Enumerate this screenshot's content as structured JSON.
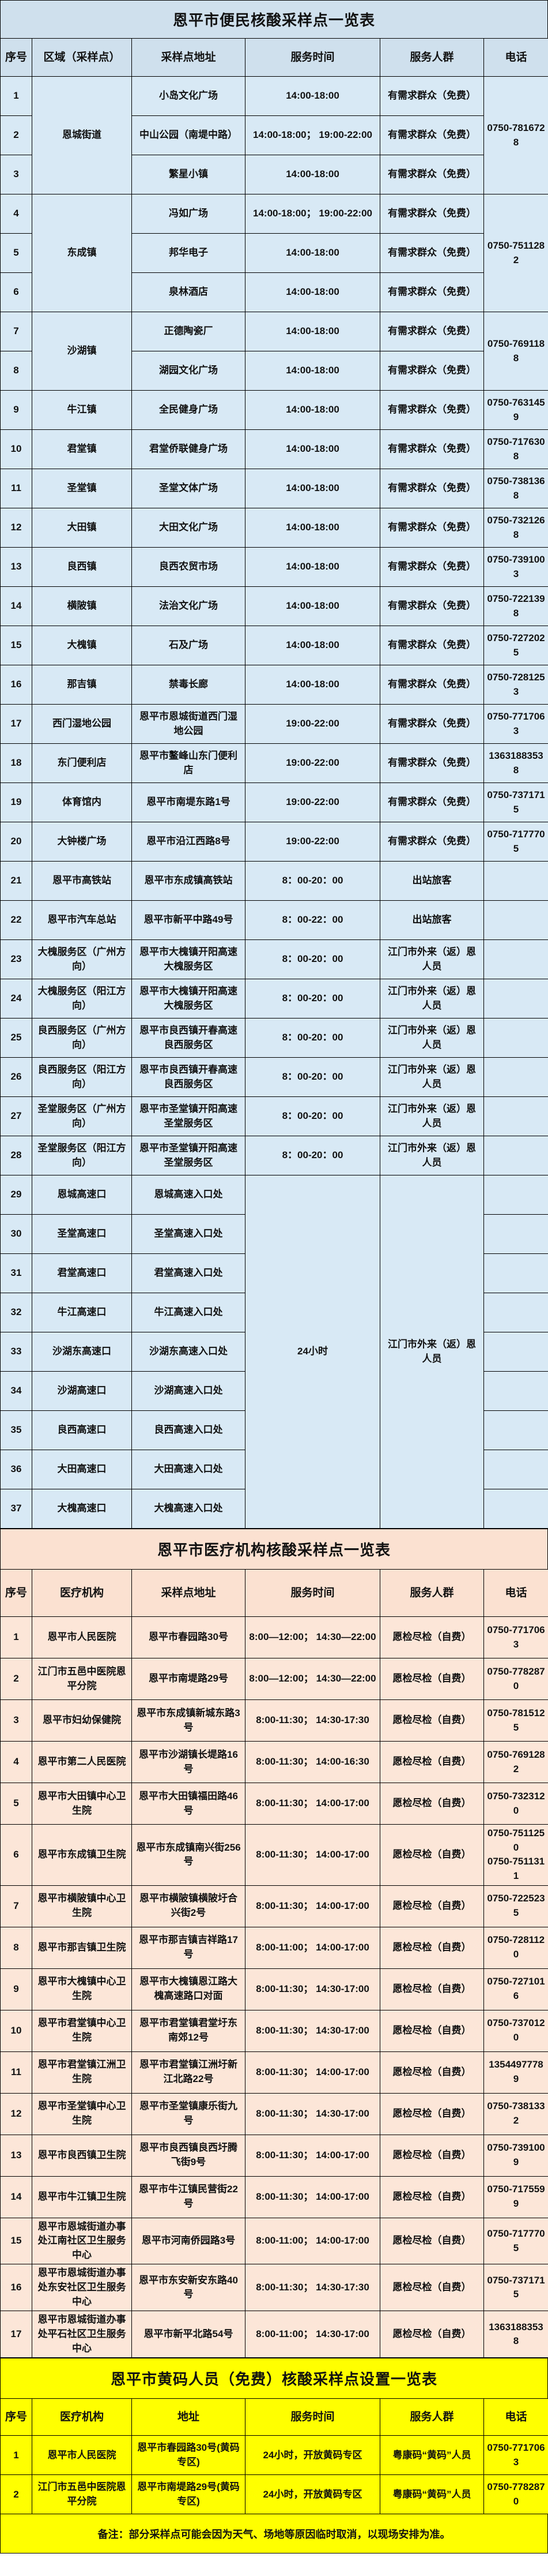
{
  "note": "备注：部分采样点可能会因为天气、场地等原因临时取消，以现场安排为准。",
  "tables": [
    {
      "title": "恩平市便民核酸采样点一览表",
      "headers": [
        "序号",
        "区域（采样点）",
        "采样点地址",
        "服务时间",
        "服务人群",
        "电话"
      ],
      "rows": [
        [
          {
            "text": "1"
          },
          {
            "text": "恩城街道",
            "rowspan": 3
          },
          {
            "text": "小岛文化广场"
          },
          {
            "text": "14:00-18:00"
          },
          {
            "text": "有需求群众（免费）"
          },
          {
            "text": "0750-7816728",
            "rowspan": 3
          }
        ],
        [
          {
            "text": "2"
          },
          {
            "text": "中山公园（南堤中路）"
          },
          {
            "text": "14:00-18:00； 19:00-22:00"
          },
          {
            "text": "有需求群众（免费）"
          }
        ],
        [
          {
            "text": "3"
          },
          {
            "text": "繁星小镇"
          },
          {
            "text": "14:00-18:00"
          },
          {
            "text": "有需求群众（免费）"
          }
        ],
        [
          {
            "text": "4"
          },
          {
            "text": "东成镇",
            "rowspan": 3
          },
          {
            "text": "冯如广场"
          },
          {
            "text": "14:00-18:00； 19:00-22:00"
          },
          {
            "text": "有需求群众（免费）"
          },
          {
            "text": "0750-7511282",
            "rowspan": 3
          }
        ],
        [
          {
            "text": "5"
          },
          {
            "text": "邦华电子"
          },
          {
            "text": "14:00-18:00"
          },
          {
            "text": "有需求群众（免费）"
          }
        ],
        [
          {
            "text": "6"
          },
          {
            "text": "泉林酒店"
          },
          {
            "text": "14:00-18:00"
          },
          {
            "text": "有需求群众（免费）"
          }
        ],
        [
          {
            "text": "7"
          },
          {
            "text": "沙湖镇",
            "rowspan": 2
          },
          {
            "text": "正德陶瓷厂"
          },
          {
            "text": "14:00-18:00"
          },
          {
            "text": "有需求群众（免费）"
          },
          {
            "text": "0750-7691188",
            "rowspan": 2
          }
        ],
        [
          {
            "text": "8"
          },
          {
            "text": "湖园文化广场"
          },
          {
            "text": "14:00-18:00"
          },
          {
            "text": "有需求群众（免费）"
          }
        ],
        [
          {
            "text": "9"
          },
          {
            "text": "牛江镇"
          },
          {
            "text": "全民健身广场"
          },
          {
            "text": "14:00-18:00"
          },
          {
            "text": "有需求群众（免费）"
          },
          {
            "text": "0750-7631459"
          }
        ],
        [
          {
            "text": "10"
          },
          {
            "text": "君堂镇"
          },
          {
            "text": "君堂侨联健身广场"
          },
          {
            "text": "14:00-18:00"
          },
          {
            "text": "有需求群众（免费）"
          },
          {
            "text": "0750-7176308"
          }
        ],
        [
          {
            "text": "11"
          },
          {
            "text": "圣堂镇"
          },
          {
            "text": "圣堂文体广场"
          },
          {
            "text": "14:00-18:00"
          },
          {
            "text": "有需求群众（免费）"
          },
          {
            "text": "0750-7381368"
          }
        ],
        [
          {
            "text": "12"
          },
          {
            "text": "大田镇"
          },
          {
            "text": "大田文化广场"
          },
          {
            "text": "14:00-18:00"
          },
          {
            "text": "有需求群众（免费）"
          },
          {
            "text": "0750-7321268"
          }
        ],
        [
          {
            "text": "13"
          },
          {
            "text": "良西镇"
          },
          {
            "text": "良西农贸市场"
          },
          {
            "text": "14:00-18:00"
          },
          {
            "text": "有需求群众（免费）"
          },
          {
            "text": "0750-7391003"
          }
        ],
        [
          {
            "text": "14"
          },
          {
            "text": "横陂镇"
          },
          {
            "text": "法治文化广场"
          },
          {
            "text": "14:00-18:00"
          },
          {
            "text": "有需求群众（免费）"
          },
          {
            "text": "0750-7221398"
          }
        ],
        [
          {
            "text": "15"
          },
          {
            "text": "大槐镇"
          },
          {
            "text": "石及广场"
          },
          {
            "text": "14:00-18:00"
          },
          {
            "text": "有需求群众（免费）"
          },
          {
            "text": "0750-7272025"
          }
        ],
        [
          {
            "text": "16"
          },
          {
            "text": "那吉镇"
          },
          {
            "text": "禁毒长廊"
          },
          {
            "text": "14:00-18:00"
          },
          {
            "text": "有需求群众（免费）"
          },
          {
            "text": "0750-7281253"
          }
        ],
        [
          {
            "text": "17"
          },
          {
            "text": "西门湿地公园"
          },
          {
            "text": "恩平市恩城街道西门湿地公园"
          },
          {
            "text": "19:00-22:00"
          },
          {
            "text": "有需求群众（免费）"
          },
          {
            "text": "0750-7717063"
          }
        ],
        [
          {
            "text": "18"
          },
          {
            "text": "东门便利店"
          },
          {
            "text": "恩平市鳌峰山东门便利店"
          },
          {
            "text": "19:00-22:00"
          },
          {
            "text": "有需求群众（免费）"
          },
          {
            "text": "13631883538"
          }
        ],
        [
          {
            "text": "19"
          },
          {
            "text": "体育馆内"
          },
          {
            "text": "恩平市南堤东路1号"
          },
          {
            "text": "19:00-22:00"
          },
          {
            "text": "有需求群众（免费）"
          },
          {
            "text": "0750-7371715"
          }
        ],
        [
          {
            "text": "20"
          },
          {
            "text": "大钟楼广场"
          },
          {
            "text": "恩平市沿江西路8号"
          },
          {
            "text": "19:00-22:00"
          },
          {
            "text": "有需求群众（免费）"
          },
          {
            "text": "0750-7177705"
          }
        ],
        [
          {
            "text": "21"
          },
          {
            "text": "恩平市高铁站"
          },
          {
            "text": "恩平市东成镇高铁站"
          },
          {
            "text": "8：00-20：00"
          },
          {
            "text": "出站旅客"
          },
          {
            "text": ""
          }
        ],
        [
          {
            "text": "22"
          },
          {
            "text": "恩平市汽车总站"
          },
          {
            "text": "恩平市新平中路49号"
          },
          {
            "text": "8：00-22：00"
          },
          {
            "text": "出站旅客"
          },
          {
            "text": ""
          }
        ],
        [
          {
            "text": "23"
          },
          {
            "text": "大槐服务区（广州方向）"
          },
          {
            "text": "恩平市大槐镇开阳高速大槐服务区"
          },
          {
            "text": "8：00-20：00"
          },
          {
            "text": "江门市外来（返）恩人员"
          },
          {
            "text": ""
          }
        ],
        [
          {
            "text": "24"
          },
          {
            "text": "大槐服务区（阳江方向）"
          },
          {
            "text": "恩平市大槐镇开阳高速大槐服务区"
          },
          {
            "text": "8：00-20：00"
          },
          {
            "text": "江门市外来（返）恩人员"
          },
          {
            "text": ""
          }
        ],
        [
          {
            "text": "25"
          },
          {
            "text": "良西服务区（广州方向）"
          },
          {
            "text": "恩平市良西镇开春高速良西服务区"
          },
          {
            "text": "8：00-20：00"
          },
          {
            "text": "江门市外来（返）恩人员"
          },
          {
            "text": ""
          }
        ],
        [
          {
            "text": "26"
          },
          {
            "text": "良西服务区（阳江方向）"
          },
          {
            "text": "恩平市良西镇开春高速良西服务区"
          },
          {
            "text": "8：00-20：00"
          },
          {
            "text": "江门市外来（返）恩人员"
          },
          {
            "text": ""
          }
        ],
        [
          {
            "text": "27"
          },
          {
            "text": "圣堂服务区（广州方向）"
          },
          {
            "text": "恩平市圣堂镇开阳高速圣堂服务区"
          },
          {
            "text": "8：00-20：00"
          },
          {
            "text": "江门市外来（返）恩人员"
          },
          {
            "text": ""
          }
        ],
        [
          {
            "text": "28"
          },
          {
            "text": "圣堂服务区（阳江方向）"
          },
          {
            "text": "恩平市圣堂镇开阳高速圣堂服务区"
          },
          {
            "text": "8：00-20：00"
          },
          {
            "text": "江门市外来（返）恩人员"
          },
          {
            "text": ""
          }
        ],
        [
          {
            "text": "29"
          },
          {
            "text": "恩城高速口"
          },
          {
            "text": "恩城高速入口处"
          },
          {
            "text": "24小时",
            "rowspan": 9
          },
          {
            "text": "江门市外来（返）恩人员",
            "rowspan": 9
          },
          {
            "text": ""
          }
        ],
        [
          {
            "text": "30"
          },
          {
            "text": "圣堂高速口"
          },
          {
            "text": "圣堂高速入口处"
          },
          {
            "text": ""
          }
        ],
        [
          {
            "text": "31"
          },
          {
            "text": "君堂高速口"
          },
          {
            "text": "君堂高速入口处"
          },
          {
            "text": ""
          }
        ],
        [
          {
            "text": "32"
          },
          {
            "text": "牛江高速口"
          },
          {
            "text": "牛江高速入口处"
          },
          {
            "text": ""
          }
        ],
        [
          {
            "text": "33"
          },
          {
            "text": "沙湖东高速口"
          },
          {
            "text": "沙湖东高速入口处"
          },
          {
            "text": ""
          }
        ],
        [
          {
            "text": "34"
          },
          {
            "text": "沙湖高速口"
          },
          {
            "text": "沙湖高速入口处"
          },
          {
            "text": ""
          }
        ],
        [
          {
            "text": "35"
          },
          {
            "text": "良西高速口"
          },
          {
            "text": "良西高速入口处"
          },
          {
            "text": ""
          }
        ],
        [
          {
            "text": "36"
          },
          {
            "text": "大田高速口"
          },
          {
            "text": "大田高速入口处"
          },
          {
            "text": ""
          }
        ],
        [
          {
            "text": "37"
          },
          {
            "text": "大槐高速口"
          },
          {
            "text": "大槐高速入口处"
          },
          {
            "text": ""
          }
        ]
      ]
    },
    {
      "title": "恩平市医疗机构核酸采样点一览表",
      "headers": [
        "序号",
        "医疗机构",
        "采样点地址",
        "服务时间",
        "服务人群",
        "电话"
      ],
      "rows": [
        [
          {
            "text": "1"
          },
          {
            "text": "恩平市人民医院"
          },
          {
            "text": "恩平市春园路30号"
          },
          {
            "text": "8:00—12:00； 14:30—22:00"
          },
          {
            "text": "愿检尽检（自费）"
          },
          {
            "text": "0750-7717063"
          }
        ],
        [
          {
            "text": "2"
          },
          {
            "text": "江门市五邑中医院恩平分院"
          },
          {
            "text": "恩平市南堤路29号"
          },
          {
            "text": "8:00—12:00； 14:30—22:00"
          },
          {
            "text": "愿检尽检（自费）"
          },
          {
            "text": "0750-7782870"
          }
        ],
        [
          {
            "text": "3"
          },
          {
            "text": "恩平市妇幼保健院"
          },
          {
            "text": "恩平市东成镇新城东路3号"
          },
          {
            "text": "8:00-11:30； 14:30-17:30"
          },
          {
            "text": "愿检尽检（自费）"
          },
          {
            "text": "0750-7815125"
          }
        ],
        [
          {
            "text": "4"
          },
          {
            "text": "恩平市第二人民医院"
          },
          {
            "text": "恩平市沙湖镇长堤路16号"
          },
          {
            "text": "8:00-11:30； 14:00-16:30"
          },
          {
            "text": "愿检尽检（自费）"
          },
          {
            "text": "0750-7691282"
          }
        ],
        [
          {
            "text": "5"
          },
          {
            "text": "恩平市大田镇中心卫生院"
          },
          {
            "text": "恩平市大田镇福田路46号"
          },
          {
            "text": "8:00-11:30； 14:00-17:00"
          },
          {
            "text": "愿检尽检（自费）"
          },
          {
            "text": "0750-7323120"
          }
        ],
        [
          {
            "text": "6"
          },
          {
            "text": "恩平市东成镇卫生院"
          },
          {
            "text": "恩平市东成镇南兴街256号"
          },
          {
            "text": "8:00-11:30； 14:00-17:00"
          },
          {
            "text": "愿检尽检（自费）"
          },
          {
            "text": "0750-7511250\n0750-7511311"
          }
        ],
        [
          {
            "text": "7"
          },
          {
            "text": "恩平市横陂镇中心卫生院"
          },
          {
            "text": "恩平市横陂镇横陂圩合兴街2号"
          },
          {
            "text": "8:00-11:30； 14:00-17:00"
          },
          {
            "text": "愿检尽检（自费）"
          },
          {
            "text": "0750-7225235"
          }
        ],
        [
          {
            "text": "8"
          },
          {
            "text": "恩平市那吉镇卫生院"
          },
          {
            "text": "恩平市那吉镇吉祥路17号"
          },
          {
            "text": "8:00-11:00； 14:00-17:00"
          },
          {
            "text": "愿检尽检（自费）"
          },
          {
            "text": "0750-7281120"
          }
        ],
        [
          {
            "text": "9"
          },
          {
            "text": "恩平市大槐镇中心卫生院"
          },
          {
            "text": "恩平市大槐镇恩江路大槐高速路口对面"
          },
          {
            "text": "8:00-11:30； 14:30-17:00"
          },
          {
            "text": "愿检尽检（自费）"
          },
          {
            "text": "0750-7271016"
          }
        ],
        [
          {
            "text": "10"
          },
          {
            "text": "恩平市君堂镇中心卫生院"
          },
          {
            "text": "恩平市君堂镇君堂圩东南郊12号"
          },
          {
            "text": "8:00-11:30； 14:30-17:00"
          },
          {
            "text": "愿检尽检（自费）"
          },
          {
            "text": "0750-7370120"
          }
        ],
        [
          {
            "text": "11"
          },
          {
            "text": "恩平市君堂镇江洲卫生院"
          },
          {
            "text": "恩平市君堂镇江洲圩新江北路22号"
          },
          {
            "text": "8:00-11:30； 14:00-17:00"
          },
          {
            "text": "愿检尽检（自费）"
          },
          {
            "text": "13544977789"
          }
        ],
        [
          {
            "text": "12"
          },
          {
            "text": "恩平市圣堂镇中心卫生院"
          },
          {
            "text": "恩平市圣堂镇康乐街九号"
          },
          {
            "text": "8:00-11:30； 14:30-17:00"
          },
          {
            "text": "愿检尽检（自费）"
          },
          {
            "text": "0750-7381332"
          }
        ],
        [
          {
            "text": "13"
          },
          {
            "text": "恩平市良西镇卫生院"
          },
          {
            "text": "恩平市良西镇良西圩腾飞街9号"
          },
          {
            "text": "8:00-11:30； 14:00-17:00"
          },
          {
            "text": "愿检尽检（自费）"
          },
          {
            "text": "0750-7391009"
          }
        ],
        [
          {
            "text": "14"
          },
          {
            "text": "恩平市牛江镇卫生院"
          },
          {
            "text": "恩平市牛江镇民营街22号"
          },
          {
            "text": "8:00-11:30； 14:00-17:00"
          },
          {
            "text": "愿检尽检（自费）"
          },
          {
            "text": "0750-7175599"
          }
        ],
        [
          {
            "text": "15"
          },
          {
            "text": "恩平市恩城街道办事处江南社区卫生服务中心"
          },
          {
            "text": "恩平市河南侨园路3号"
          },
          {
            "text": "8:00-11:00； 14:00-17:00"
          },
          {
            "text": "愿检尽检（自费）"
          },
          {
            "text": "0750-7177705"
          }
        ],
        [
          {
            "text": "16"
          },
          {
            "text": "恩平市恩城街道办事处东安社区卫生服务中心"
          },
          {
            "text": "恩平市东安新安东路40号"
          },
          {
            "text": "8:00-11:30； 14:30-17:30"
          },
          {
            "text": "愿检尽检（自费）"
          },
          {
            "text": "0750-7371715"
          }
        ],
        [
          {
            "text": "17"
          },
          {
            "text": "恩平市恩城街道办事处平石社区卫生服务中心"
          },
          {
            "text": "恩平市新平北路54号"
          },
          {
            "text": "8:00-11:00； 14:30-17:00"
          },
          {
            "text": "愿检尽检（自费）"
          },
          {
            "text": "13631883538"
          }
        ]
      ]
    },
    {
      "title": "恩平市黄码人员（免费）核酸采样点设置一览表",
      "headers": [
        "序号",
        "医疗机构",
        "地址",
        "服务时间",
        "服务人群",
        "电话"
      ],
      "rows": [
        [
          {
            "text": "1"
          },
          {
            "text": "恩平市人民医院"
          },
          {
            "text": "恩平市春园路30号(黄码专区)"
          },
          {
            "text": "24小时，开放黄码专区"
          },
          {
            "text": "粤康码“黄码”人员"
          },
          {
            "text": "0750-7717063"
          }
        ],
        [
          {
            "text": "2"
          },
          {
            "text": "江门市五邑中医院恩平分院"
          },
          {
            "text": "恩平市南堤路29号(黄码专区)"
          },
          {
            "text": "24小时，开放黄码专区"
          },
          {
            "text": "粤康码“黄码”人员"
          },
          {
            "text": "0750-7782870"
          }
        ]
      ]
    }
  ]
}
